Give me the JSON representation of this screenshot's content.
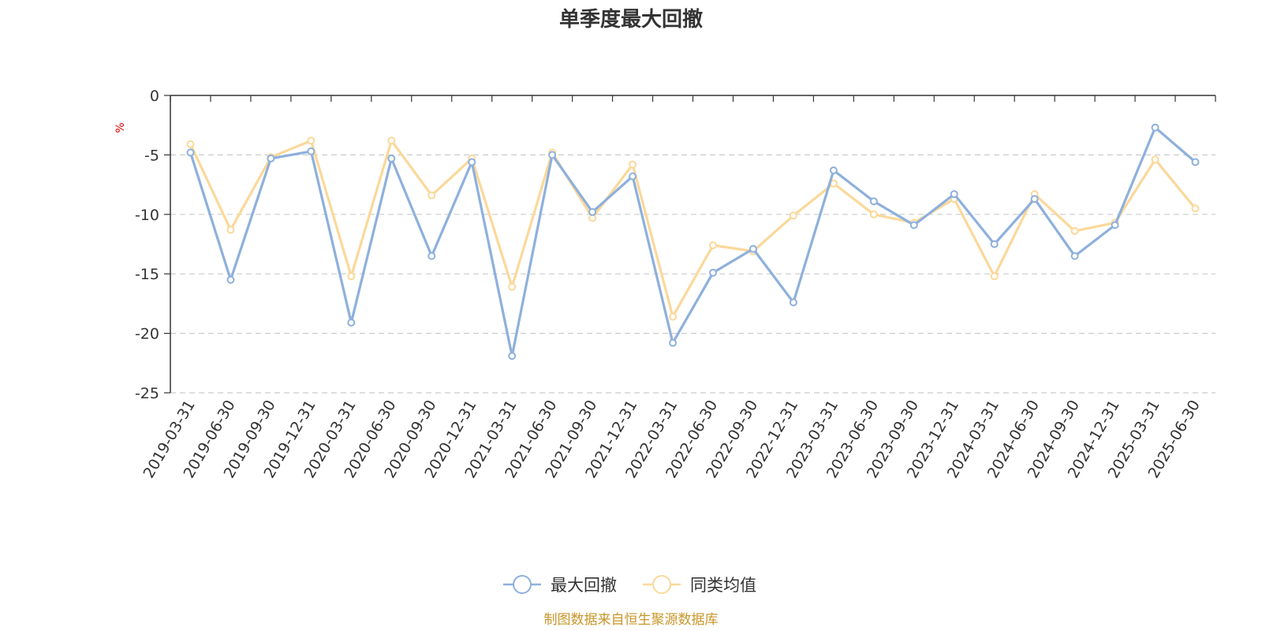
{
  "chart_data": {
    "type": "line",
    "title": "单季度最大回撤",
    "ylabel": "%",
    "ylim": [
      -25,
      0
    ],
    "yticks": [
      0,
      -5,
      -10,
      -15,
      -20,
      -25
    ],
    "grid": true,
    "legend_position": "bottom-center",
    "categories": [
      "2019-03-31",
      "2019-06-30",
      "2019-09-30",
      "2019-12-31",
      "2020-03-31",
      "2020-06-30",
      "2020-09-30",
      "2020-12-31",
      "2021-03-31",
      "2021-06-30",
      "2021-09-30",
      "2021-12-31",
      "2022-03-31",
      "2022-06-30",
      "2022-09-30",
      "2022-12-31",
      "2023-03-31",
      "2023-06-30",
      "2023-09-30",
      "2023-12-31",
      "2024-03-31",
      "2024-06-30",
      "2024-09-30",
      "2024-12-31",
      "2025-03-31",
      "2025-06-30"
    ],
    "series": [
      {
        "name": "最大回撤",
        "color": "#8eb0dc",
        "values": [
          -4.8,
          -15.5,
          -5.3,
          -4.7,
          -19.1,
          -5.3,
          -13.5,
          -5.6,
          -21.9,
          -5.0,
          -9.8,
          -6.8,
          -20.8,
          -14.9,
          -12.9,
          -17.4,
          -6.3,
          -8.9,
          -10.9,
          -8.3,
          -12.5,
          -8.7,
          -13.5,
          -10.9,
          -2.7,
          -5.6
        ]
      },
      {
        "name": "同类均值",
        "color": "#fbd89a",
        "values": [
          -4.1,
          -11.3,
          -5.2,
          -3.8,
          -15.2,
          -3.8,
          -8.4,
          -5.3,
          -16.1,
          -4.8,
          -10.3,
          -5.8,
          -18.6,
          -12.6,
          -13.1,
          -10.1,
          -7.4,
          -10.0,
          -10.7,
          -8.7,
          -15.2,
          -8.3,
          -11.4,
          -10.7,
          -5.4,
          -9.5
        ]
      }
    ]
  },
  "source_note": "制图数据来自恒生聚源数据库"
}
